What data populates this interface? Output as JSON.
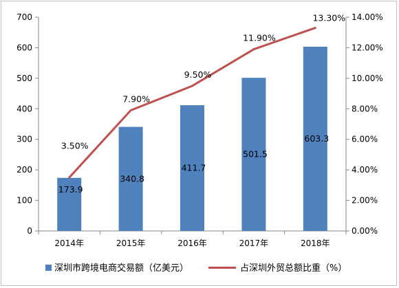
{
  "chart_data": {
    "type": "bar+line",
    "categories": [
      "2014年",
      "2015年",
      "2016年",
      "2017年",
      "2018年"
    ],
    "series": [
      {
        "name": "深圳市跨境电商交易额（亿美元）",
        "type": "bar",
        "axis": "left",
        "values": [
          173.9,
          340.8,
          411.7,
          501.5,
          603.3
        ],
        "labels": [
          "173.9",
          "340.8",
          "411.7",
          "501.5",
          "603.3"
        ],
        "color": "#4F81BD"
      },
      {
        "name": "占深圳外贸总额比重（%）",
        "type": "line",
        "axis": "right",
        "values": [
          3.5,
          7.9,
          9.5,
          11.9,
          13.3
        ],
        "labels": [
          "3.50%",
          "7.90%",
          "9.50%",
          "11.90%",
          "13.30%"
        ],
        "color": "#C0504D"
      }
    ],
    "y_left": {
      "min": 0,
      "max": 700,
      "step": 100,
      "ticks": [
        "0",
        "100",
        "200",
        "300",
        "400",
        "500",
        "600",
        "700"
      ]
    },
    "y_right": {
      "min": 0,
      "max": 14,
      "step": 2,
      "ticks": [
        "0.00%",
        "2.00%",
        "4.00%",
        "6.00%",
        "8.00%",
        "10.00%",
        "12.00%",
        "14.00%"
      ]
    },
    "grid": false,
    "legend_position": "bottom"
  }
}
